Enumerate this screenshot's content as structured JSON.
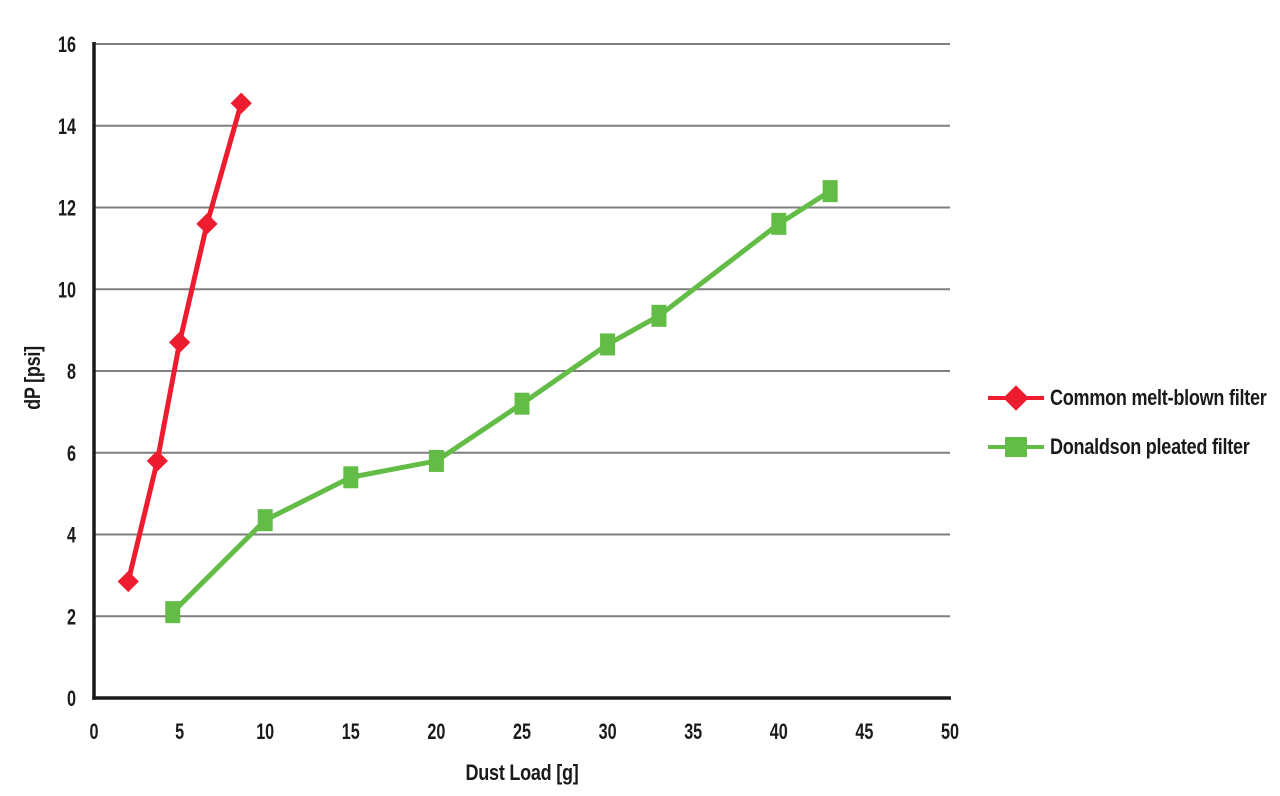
{
  "chart_data": {
    "type": "line",
    "title": "",
    "xlabel": "Dust Load [g]",
    "ylabel": "dP [psi]",
    "xlim": [
      0,
      50
    ],
    "ylim": [
      0,
      16
    ],
    "x_ticks": [
      0,
      5,
      10,
      15,
      20,
      25,
      30,
      35,
      40,
      45,
      50
    ],
    "y_ticks": [
      0,
      2,
      4,
      6,
      8,
      10,
      12,
      14,
      16
    ],
    "grid": "horizontal",
    "legend_position": "right",
    "series": [
      {
        "name": "Common melt-blown filter",
        "color": "#ed1c2e",
        "marker": "diamond",
        "points": [
          [
            2,
            2.85
          ],
          [
            3.7,
            5.8
          ],
          [
            5,
            8.7
          ],
          [
            6.6,
            11.6
          ],
          [
            8.6,
            14.55
          ]
        ]
      },
      {
        "name": "Donaldson pleated filter",
        "color": "#62bc46",
        "marker": "square",
        "points": [
          [
            4.6,
            2.1
          ],
          [
            10,
            4.35
          ],
          [
            15,
            5.4
          ],
          [
            20,
            5.8
          ],
          [
            25,
            7.2
          ],
          [
            30,
            8.65
          ],
          [
            33,
            9.35
          ],
          [
            40,
            11.6
          ],
          [
            43,
            12.4
          ]
        ]
      }
    ]
  },
  "colors": {
    "red": "#ed1c2e",
    "green": "#62bc46",
    "grid": "#7f7f7f",
    "axis": "#1a1a1a",
    "text": "#1a1a1a",
    "background": "#ffffff"
  }
}
